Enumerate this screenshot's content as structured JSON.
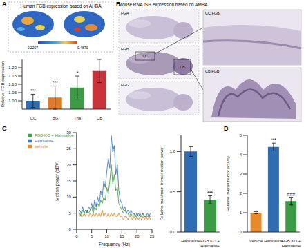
{
  "panels": [
    {
      "label": "A",
      "title": "Human FGB expression based on AHBA",
      "colorbar": {
        "range": [
          0.2207,
          0.487
        ],
        "ticks": [
          0.2207,
          {
            "value": 0.487,
            "label": "0.4870"
          }
        ]
      }
    },
    {
      "label": "B",
      "title": "Mouse RNA ISH expression based on AMBA",
      "images": [
        "FGA",
        "FGB",
        "FGG"
      ],
      "boxes": [
        "CC",
        "CB"
      ],
      "zooms": [
        "CC FGB",
        "CB FGB"
      ]
    },
    {
      "label": "C"
    },
    {
      "label": "D"
    }
  ],
  "chart_data": [
    {
      "type": "bar",
      "categories": [
        "CC",
        "BG",
        "Tha",
        "CB"
      ],
      "values": [
        1.0,
        1.02,
        1.08,
        1.18
      ],
      "errors": [
        0.04,
        0.07,
        0.07,
        0.07
      ],
      "significance": [
        "***",
        "***",
        "*",
        null
      ],
      "colors": [
        "#2e6db4",
        "#e07b2a",
        "#3b9c45",
        "#c8323a"
      ],
      "ylabel": "Relative FGB expression",
      "ylim": [
        0.95,
        1.25
      ],
      "yticks": [
        {
          "value": 1.0,
          "label": "1.00"
        },
        {
          "value": 1.05,
          "label": "1.05"
        },
        {
          "value": 1.1,
          "label": "1.10"
        },
        {
          "value": 1.15,
          "label": "1.15"
        },
        {
          "value": 1.2,
          "label": "1.20"
        }
      ]
    },
    {
      "type": "line",
      "xlabel": "Frequency (Hz)",
      "ylabel": "Motion power (dBV)",
      "x": [
        1,
        1.5,
        2,
        2.5,
        3,
        3.5,
        4,
        4.5,
        5,
        5.5,
        6,
        6.5,
        7,
        7.5,
        8,
        8.5,
        9,
        9.5,
        10,
        10.5,
        11,
        11.5,
        12,
        12.5,
        13,
        13.5,
        14,
        14.5,
        15,
        15.5,
        16,
        16.5,
        17,
        17.5,
        18,
        18.5,
        19,
        19.5,
        20,
        20.5,
        21,
        21.5,
        22,
        22.5,
        23,
        23.5,
        24,
        24.5
      ],
      "series": [
        {
          "name": "Vehicle",
          "color": "#e8892b",
          "values": [
            4,
            5,
            4,
            5,
            4,
            6,
            4,
            5,
            4,
            5,
            4,
            5,
            4,
            5,
            4,
            6,
            4,
            5,
            4,
            5,
            4,
            5,
            4,
            5,
            4,
            4,
            5,
            4,
            4,
            3,
            4,
            4,
            3,
            4,
            4,
            3,
            4,
            3,
            4,
            3,
            4,
            3,
            4,
            3,
            4,
            3,
            4,
            3
          ]
        },
        {
          "name": "Harmaline",
          "color": "#3a78c2",
          "values": [
            6,
            5,
            7,
            5,
            6,
            5,
            7,
            6,
            8,
            6,
            9,
            7,
            10,
            8,
            12,
            10,
            15,
            13,
            18,
            22,
            19,
            29,
            24,
            26,
            17,
            20,
            12,
            9,
            8,
            6,
            7,
            5,
            6,
            5,
            6,
            5,
            5,
            4,
            5,
            4,
            5,
            4,
            5,
            4,
            4,
            5,
            4,
            5
          ]
        },
        {
          "name": "FGB KO + Harmaline",
          "color": "#45a04a",
          "values": [
            5,
            4,
            6,
            5,
            5,
            6,
            5,
            6,
            7,
            5,
            7,
            6,
            8,
            7,
            9,
            8,
            10,
            9,
            13,
            11,
            15,
            20,
            14,
            17,
            12,
            13,
            8,
            7,
            6,
            5,
            6,
            5,
            5,
            4,
            5,
            4,
            5,
            4,
            4,
            5,
            4,
            4,
            5,
            4,
            4,
            4,
            4,
            4
          ]
        }
      ],
      "xlim": [
        0,
        25
      ],
      "xticks": [
        0,
        5,
        10,
        15,
        20,
        25
      ],
      "ylim": [
        0,
        30
      ],
      "yticks": [
        0,
        5,
        10,
        15,
        20,
        25,
        30
      ],
      "legend": "upper left"
    },
    {
      "type": "bar",
      "categories": [
        "Harmaline",
        "FGB KO + Harmaline"
      ],
      "values": [
        1.0,
        0.4
      ],
      "errors": [
        0.06,
        0.05
      ],
      "significance": [
        null,
        "***"
      ],
      "colors": [
        "#2e6db4",
        "#3b9c45"
      ],
      "ylabel": "Relative maximum tremor motion power",
      "ylim": [
        0,
        1.2
      ],
      "yticks": [
        {
          "value": 0,
          "label": "0.0"
        },
        {
          "value": 0.5,
          "label": "0.5"
        },
        {
          "value": 1.0,
          "label": "1.0"
        }
      ]
    },
    {
      "type": "bar",
      "categories": [
        "Vehicle",
        "Harmaline",
        "FGB KO + Harmaline"
      ],
      "values": [
        1.0,
        4.4,
        1.6
      ],
      "errors": [
        0.05,
        0.2,
        0.2
      ],
      "significance": [
        null,
        "***",
        "###"
      ],
      "colors": [
        "#e8892b",
        "#2e6db4",
        "#3b9c45"
      ],
      "ylabel": "Relative overall tremor activity",
      "ylim": [
        0,
        5
      ],
      "yticks": [
        0,
        1,
        2,
        3,
        4,
        5
      ]
    }
  ]
}
